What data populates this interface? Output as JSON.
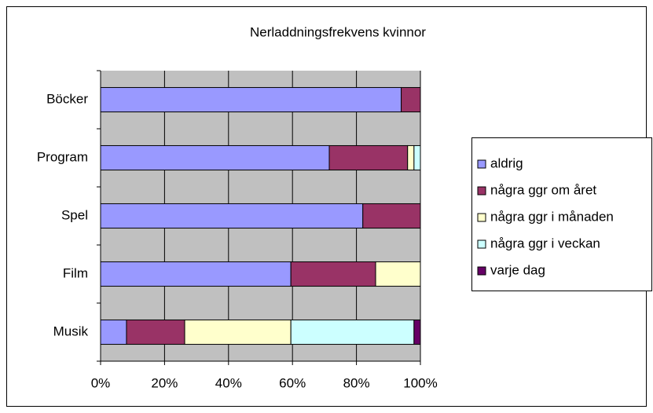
{
  "chart_data": {
    "type": "stacked-barh",
    "title": "Nerladdningsfrekvens kvinnor",
    "categories": [
      "Böcker",
      "Program",
      "Spel",
      "Film",
      "Musik"
    ],
    "series": [
      {
        "name": "aldrig",
        "color": "#9999ff",
        "values": [
          94,
          71.5,
          82,
          59.5,
          8.1
        ]
      },
      {
        "name": "några ggr om året",
        "color": "#993366",
        "values": [
          6,
          24.5,
          18,
          26.5,
          18.2
        ]
      },
      {
        "name": "några ggr i månaden",
        "color": "#ffffcc",
        "values": [
          0,
          2,
          0,
          14,
          33.2
        ]
      },
      {
        "name": "några ggr i veckan",
        "color": "#ccffff",
        "values": [
          0,
          2,
          0,
          0,
          38.5
        ]
      },
      {
        "name": "varje dag",
        "color": "#660066",
        "values": [
          0,
          0,
          0,
          0,
          2
        ]
      }
    ],
    "xlim": [
      0,
      100
    ],
    "xticks": [
      {
        "value": 0,
        "label": "0%"
      },
      {
        "value": 20,
        "label": "20%"
      },
      {
        "value": 40,
        "label": "40%"
      },
      {
        "value": 60,
        "label": "60%"
      },
      {
        "value": 80,
        "label": "80%"
      },
      {
        "value": 100,
        "label": "100%"
      }
    ],
    "grid": true,
    "legend": "right"
  }
}
